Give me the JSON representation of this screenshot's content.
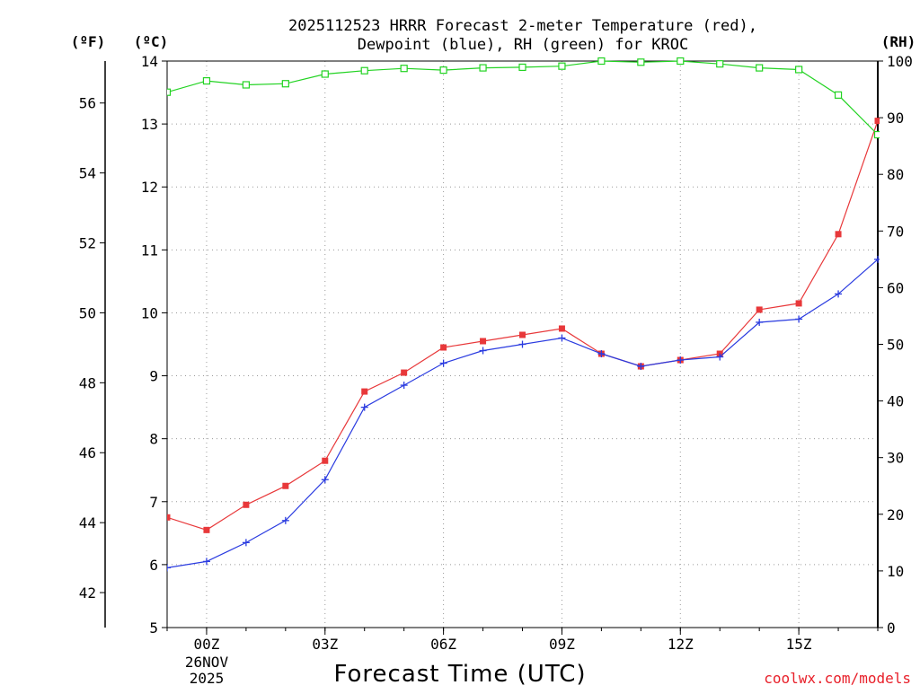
{
  "chart_data": {
    "type": "line",
    "title_line1": "2025112523 HRRR Forecast 2-meter Temperature (red),",
    "title_line2": "Dewpoint (blue), RH (green) for KROC",
    "xlabel": "Forecast Time (UTC)",
    "credit": "coolwx.com/models",
    "unit_f": "(ºF)",
    "unit_c": "(ºC)",
    "unit_rh": "(RH)",
    "date_line1": "26NOV",
    "date_line2": "2025",
    "x": [
      -1,
      0,
      1,
      2,
      3,
      4,
      5,
      6,
      7,
      8,
      9,
      10,
      11,
      12,
      13,
      14,
      15,
      16,
      17
    ],
    "xlim": [
      -1,
      17
    ],
    "x_ticks": [
      {
        "x": 0,
        "label": "00Z"
      },
      {
        "x": 3,
        "label": "03Z"
      },
      {
        "x": 6,
        "label": "06Z"
      },
      {
        "x": 9,
        "label": "09Z"
      },
      {
        "x": 12,
        "label": "12Z"
      },
      {
        "x": 15,
        "label": "15Z"
      }
    ],
    "ylim_c": [
      5,
      14
    ],
    "yticks_c": [
      5,
      6,
      7,
      8,
      9,
      10,
      11,
      12,
      13,
      14
    ],
    "yticks_f": [
      42,
      44,
      46,
      48,
      50,
      52,
      54,
      56
    ],
    "ylim_rh": [
      0,
      100
    ],
    "yticks_rh": [
      0,
      10,
      20,
      30,
      40,
      50,
      60,
      70,
      80,
      90,
      100
    ],
    "series": [
      {
        "name": "Temperature",
        "color": "#e8383a",
        "axis": "c",
        "marker": "square-filled",
        "values": [
          6.75,
          6.55,
          6.95,
          7.25,
          7.65,
          8.75,
          9.05,
          9.45,
          9.55,
          9.65,
          9.75,
          9.35,
          9.15,
          9.25,
          9.35,
          10.05,
          10.15,
          11.25,
          13.05
        ]
      },
      {
        "name": "Dewpoint",
        "color": "#2a3be0",
        "axis": "c",
        "marker": "plus",
        "values": [
          5.95,
          6.05,
          6.35,
          6.7,
          7.35,
          8.5,
          8.85,
          9.2,
          9.4,
          9.5,
          9.6,
          9.35,
          9.15,
          9.25,
          9.3,
          9.85,
          9.9,
          10.3,
          10.85
        ]
      },
      {
        "name": "RH",
        "color": "#22d322",
        "axis": "rh",
        "marker": "square-open",
        "values": [
          94.5,
          96.5,
          95.8,
          96,
          97.7,
          98.3,
          98.7,
          98.4,
          98.8,
          98.9,
          99.1,
          100,
          99.8,
          100,
          99.5,
          98.8,
          98.5,
          94,
          87
        ]
      }
    ]
  }
}
